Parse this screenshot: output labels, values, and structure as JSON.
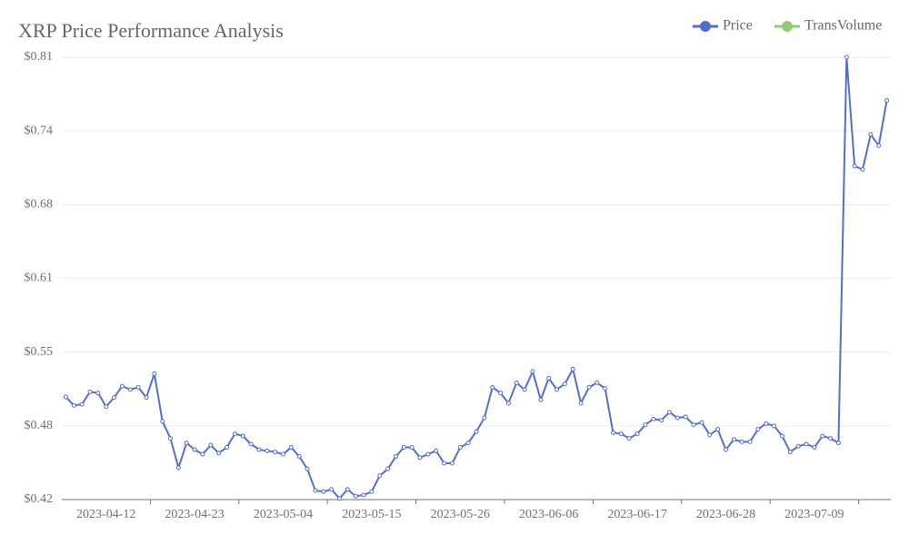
{
  "chart_data": {
    "type": "line",
    "title": "XRP Price Performance Analysis",
    "categories": [
      null,
      null,
      null,
      null,
      null,
      "2023-04-12",
      null,
      null,
      null,
      null,
      null,
      null,
      null,
      null,
      null,
      null,
      "2023-04-23",
      null,
      null,
      null,
      null,
      null,
      null,
      null,
      null,
      null,
      null,
      "2023-05-04",
      null,
      null,
      null,
      null,
      null,
      null,
      null,
      null,
      null,
      null,
      "2023-05-15",
      null,
      null,
      null,
      null,
      null,
      null,
      null,
      null,
      null,
      null,
      "2023-05-26",
      null,
      null,
      null,
      null,
      null,
      null,
      null,
      null,
      null,
      null,
      "2023-06-06",
      null,
      null,
      null,
      null,
      null,
      null,
      null,
      null,
      null,
      null,
      "2023-06-17",
      null,
      null,
      null,
      null,
      null,
      null,
      null,
      null,
      null,
      null,
      "2023-06-28",
      null,
      null,
      null,
      null,
      null,
      null,
      null,
      null,
      null,
      null,
      "2023-07-09",
      null,
      null,
      null,
      null,
      null,
      null,
      null,
      null,
      null
    ],
    "series": [
      {
        "name": "Price",
        "color": "#5470c6",
        "values": [
          0.5105,
          0.503,
          0.504,
          0.515,
          0.514,
          0.502,
          0.51,
          0.52,
          0.517,
          0.519,
          0.51,
          0.531,
          0.489,
          0.474,
          0.448,
          0.47,
          0.464,
          0.46,
          0.468,
          0.461,
          0.466,
          0.478,
          0.476,
          0.469,
          0.464,
          0.463,
          0.462,
          0.46,
          0.466,
          0.458,
          0.447,
          0.428,
          0.427,
          0.429,
          0.421,
          0.429,
          0.423,
          0.424,
          0.427,
          0.441,
          0.447,
          0.458,
          0.466,
          0.466,
          0.457,
          0.46,
          0.463,
          0.452,
          0.452,
          0.466,
          0.47,
          0.48,
          0.492,
          0.519,
          0.514,
          0.505,
          0.523,
          0.517,
          0.533,
          0.508,
          0.527,
          0.517,
          0.522,
          0.535,
          0.505,
          0.519,
          0.523,
          0.518,
          0.479,
          0.478,
          0.474,
          0.478,
          0.486,
          0.491,
          0.49,
          0.497,
          0.492,
          0.493,
          0.486,
          0.488,
          0.477,
          0.482,
          0.464,
          0.473,
          0.471,
          0.471,
          0.482,
          0.487,
          0.485,
          0.476,
          0.462,
          0.467,
          0.469,
          0.466,
          0.476,
          0.474,
          0.47,
          0.81,
          0.714,
          0.711,
          0.742,
          0.732,
          0.772
        ]
      },
      {
        "name": "TransVolume",
        "color": "#91cc75",
        "values": [
          null,
          null,
          null,
          null,
          null,
          null,
          null,
          null,
          null,
          null,
          null,
          null,
          null,
          null,
          null,
          null,
          null,
          null,
          null,
          null,
          null,
          null,
          null,
          null,
          null,
          null,
          null,
          null,
          null,
          null,
          null,
          null,
          null,
          null,
          null,
          null,
          null,
          null,
          null,
          null,
          null,
          null,
          null,
          null,
          null,
          null,
          null,
          null,
          null,
          null,
          null,
          null,
          null,
          null,
          null,
          null,
          null,
          null,
          null,
          null,
          null,
          null,
          null,
          null,
          null,
          null,
          null,
          null,
          null,
          null,
          null,
          null,
          null,
          null,
          null,
          null,
          null,
          null,
          null,
          null,
          null,
          null,
          null,
          null,
          null,
          null,
          null,
          null,
          null,
          null,
          null,
          null,
          null,
          null,
          null,
          null,
          null,
          null,
          null,
          null,
          null,
          null,
          null
        ]
      }
    ],
    "ylim": [
      0.42,
      0.81
    ],
    "yticks": [
      {
        "value": 0.42,
        "label": "$0.42"
      },
      {
        "value": 0.485,
        "label": "$0.48"
      },
      {
        "value": 0.55,
        "label": "$0.55"
      },
      {
        "value": 0.615,
        "label": "$0.61"
      },
      {
        "value": 0.68,
        "label": "$0.68"
      },
      {
        "value": 0.745,
        "label": "$0.74"
      },
      {
        "value": 0.81,
        "label": "$0.81"
      }
    ],
    "grid": true
  }
}
